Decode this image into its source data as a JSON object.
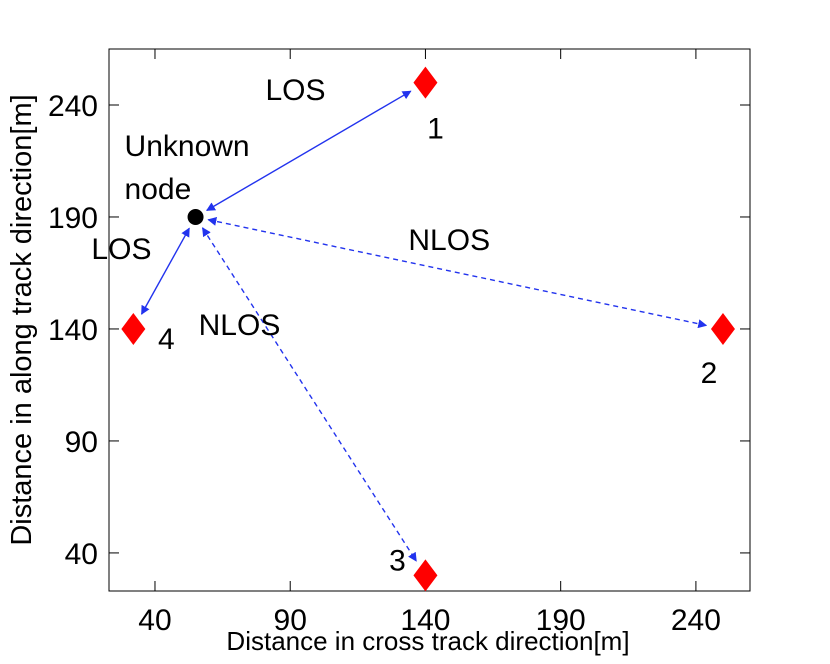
{
  "chart_data": {
    "type": "scatter",
    "title": "",
    "xlabel": "Distance in cross track direction[m]",
    "ylabel": "Distance in along track direction[m]",
    "xlim": [
      23,
      260
    ],
    "ylim": [
      23,
      265
    ],
    "xticks": [
      40,
      90,
      140,
      190,
      240
    ],
    "yticks": [
      40,
      90,
      140,
      190,
      240
    ],
    "grid": false,
    "colors": {
      "anchor": "#ff0000",
      "unknown": "#000000",
      "link": "#2233ee"
    },
    "anchors": [
      {
        "id": "1",
        "x": 140,
        "y": 250
      },
      {
        "id": "2",
        "x": 250,
        "y": 140
      },
      {
        "id": "3",
        "x": 140,
        "y": 30
      },
      {
        "id": "4",
        "x": 32,
        "y": 140
      }
    ],
    "unknown_node": {
      "label_line1": "Unknown",
      "label_line2": "node",
      "x": 55,
      "y": 190
    },
    "links": [
      {
        "to": "1",
        "type": "LOS",
        "style": "solid"
      },
      {
        "to": "2",
        "type": "NLOS",
        "style": "dashed"
      },
      {
        "to": "3",
        "type": "NLOS",
        "style": "dashed"
      },
      {
        "to": "4",
        "type": "LOS",
        "style": "solid"
      }
    ],
    "link_labels": [
      {
        "link": "1",
        "text": "LOS"
      },
      {
        "link": "2",
        "text": "NLOS"
      },
      {
        "link": "3",
        "text": "NLOS"
      },
      {
        "link": "4",
        "text": "LOS"
      }
    ]
  }
}
